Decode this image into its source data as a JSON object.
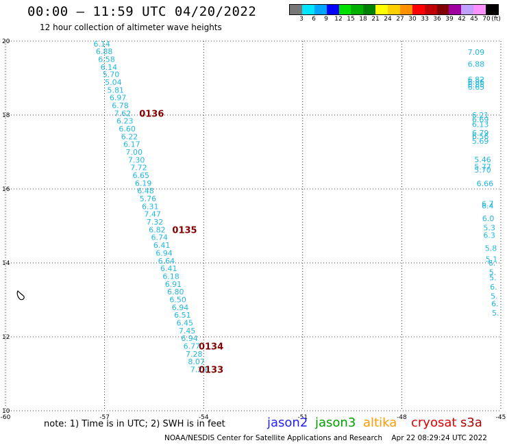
{
  "title": "00:00 – 11:59 UTC 04/20/2022",
  "subtitle": "12 hour collection of altimeter wave heights",
  "legend": {
    "unit": "(ft)",
    "colors": [
      "#777777",
      "#00e5ff",
      "#00a5ff",
      "#0000ff",
      "#00e000",
      "#00b000",
      "#008000",
      "#ffff00",
      "#ffd000",
      "#ff9000",
      "#ff0000",
      "#c00000",
      "#800000",
      "#a000a0",
      "#c0a0ff",
      "#ff90ff",
      "#000000"
    ],
    "labels": [
      "3",
      "6",
      "9",
      "12",
      "15",
      "18",
      "21",
      "24",
      "27",
      "30",
      "33",
      "36",
      "39",
      "42",
      "45",
      "70"
    ]
  },
  "map": {
    "lon_ticks": [
      "-60",
      "-57",
      "-54",
      "-51",
      "-48",
      "-45"
    ],
    "lat_ticks": [
      "10",
      "12",
      "14",
      "16",
      "18",
      "20"
    ],
    "lon_range": [
      -60,
      -45
    ],
    "lat_range": [
      10,
      20
    ],
    "grid": "dotted",
    "track_color": "#20b8e0",
    "time_color": "#800000"
  },
  "track_main": [
    {
      "lat": 19.93,
      "v": "6.14"
    },
    {
      "lat": 19.72,
      "v": "6.88"
    },
    {
      "lat": 19.51,
      "v": "6.58"
    },
    {
      "lat": 19.3,
      "v": "6.14"
    },
    {
      "lat": 19.1,
      "v": "5.70"
    },
    {
      "lat": 18.89,
      "v": "5.04"
    },
    {
      "lat": 18.68,
      "v": "5.81"
    },
    {
      "lat": 18.47,
      "v": "6.97"
    },
    {
      "lat": 18.26,
      "v": "6.78"
    },
    {
      "lat": 18.05,
      "v": "7.62"
    },
    {
      "lat": 17.84,
      "v": "6.23"
    },
    {
      "lat": 17.63,
      "v": "6.60"
    },
    {
      "lat": 17.42,
      "v": "6.22"
    },
    {
      "lat": 17.21,
      "v": "6.17"
    },
    {
      "lat": 17.0,
      "v": "7.00"
    },
    {
      "lat": 16.79,
      "v": "7.30"
    },
    {
      "lat": 16.58,
      "v": "7.72"
    },
    {
      "lat": 16.37,
      "v": "6.65"
    },
    {
      "lat": 16.16,
      "v": "6.19"
    },
    {
      "lat": 15.95,
      "v": "6.48"
    },
    {
      "lat": 15.74,
      "v": "5.76"
    },
    {
      "lat": 15.53,
      "v": "6.31"
    },
    {
      "lat": 15.32,
      "v": "7.47"
    },
    {
      "lat": 15.11,
      "v": "7.32"
    },
    {
      "lat": 14.9,
      "v": "6.82"
    },
    {
      "lat": 14.69,
      "v": "6.74"
    },
    {
      "lat": 14.48,
      "v": "6.41"
    },
    {
      "lat": 14.27,
      "v": "6.94"
    },
    {
      "lat": 14.06,
      "v": "6.64"
    },
    {
      "lat": 13.85,
      "v": "6.41"
    },
    {
      "lat": 13.64,
      "v": "6.18"
    },
    {
      "lat": 13.43,
      "v": "6.91"
    },
    {
      "lat": 13.22,
      "v": "6.80"
    },
    {
      "lat": 13.01,
      "v": "6.50"
    },
    {
      "lat": 12.8,
      "v": "6.94"
    },
    {
      "lat": 12.59,
      "v": "6.51"
    },
    {
      "lat": 12.38,
      "v": "6.45"
    },
    {
      "lat": 12.17,
      "v": "7.45"
    },
    {
      "lat": 11.96,
      "v": "6.94"
    },
    {
      "lat": 11.75,
      "v": "6.77"
    },
    {
      "lat": 11.54,
      "v": "7.28"
    },
    {
      "lat": 11.33,
      "v": "8.07"
    },
    {
      "lat": 11.12,
      "v": "7.29"
    }
  ],
  "track_main_lon": {
    "start": -57.08,
    "end": -54.15
  },
  "time_labels": [
    {
      "lat": 18.05,
      "lon": -55.95,
      "text": "0136"
    },
    {
      "lat": 14.9,
      "lon": -54.95,
      "text": "0135"
    },
    {
      "lat": 11.75,
      "lon": -54.15,
      "text": "0134"
    },
    {
      "lat": 11.12,
      "lon": -54.15,
      "text": "0133"
    }
  ],
  "track_edge": [
    {
      "lat": 19.7,
      "lon": -45.75,
      "v": "7.09"
    },
    {
      "lat": 19.38,
      "lon": -45.75,
      "v": "6.88"
    },
    {
      "lat": 18.96,
      "lon": -45.75,
      "v": "6.82"
    },
    {
      "lat": 18.9,
      "lon": -45.75,
      "v": "6.86"
    },
    {
      "lat": 18.82,
      "lon": -45.75,
      "v": "6.85"
    },
    {
      "lat": 18.76,
      "lon": -45.75,
      "v": "6.65"
    },
    {
      "lat": 18.0,
      "lon": -45.62,
      "v": "6.21"
    },
    {
      "lat": 17.88,
      "lon": -45.62,
      "v": "6.69"
    },
    {
      "lat": 17.75,
      "lon": -45.62,
      "v": "6.13"
    },
    {
      "lat": 17.52,
      "lon": -45.62,
      "v": "6.79"
    },
    {
      "lat": 17.43,
      "lon": -45.62,
      "v": "6.56"
    },
    {
      "lat": 17.3,
      "lon": -45.62,
      "v": "5.69"
    },
    {
      "lat": 16.8,
      "lon": -45.55,
      "v": "5.46"
    },
    {
      "lat": 16.6,
      "lon": -45.55,
      "v": "5.77"
    },
    {
      "lat": 16.52,
      "lon": -45.55,
      "v": "5.70"
    },
    {
      "lat": 16.15,
      "lon": -45.48,
      "v": "6.66"
    },
    {
      "lat": 15.6,
      "lon": -45.4,
      "v": "6.7"
    },
    {
      "lat": 15.55,
      "lon": -45.4,
      "v": "6.4"
    },
    {
      "lat": 15.2,
      "lon": -45.38,
      "v": "6.0"
    },
    {
      "lat": 14.95,
      "lon": -45.35,
      "v": "5.3"
    },
    {
      "lat": 14.75,
      "lon": -45.35,
      "v": "6.3"
    },
    {
      "lat": 14.4,
      "lon": -45.3,
      "v": "5.8"
    },
    {
      "lat": 14.1,
      "lon": -45.28,
      "v": "5.1"
    },
    {
      "lat": 14.0,
      "lon": -45.27,
      "v": "6."
    },
    {
      "lat": 13.75,
      "lon": -45.25,
      "v": "5."
    },
    {
      "lat": 13.6,
      "lon": -45.24,
      "v": "5."
    },
    {
      "lat": 13.35,
      "lon": -45.22,
      "v": "6."
    },
    {
      "lat": 13.1,
      "lon": -45.2,
      "v": "5."
    },
    {
      "lat": 12.9,
      "lon": -45.18,
      "v": "6."
    },
    {
      "lat": 12.65,
      "lon": -45.16,
      "v": "5."
    }
  ],
  "note": "note:  1) Time is in UTC;  2) SWH is in feet",
  "satellites": [
    {
      "name": "jason2",
      "color": "#1f1fff"
    },
    {
      "name": "jason3",
      "color": "#00a000"
    },
    {
      "name": "altika",
      "color": "#ff9900"
    },
    {
      "name": "cryosat",
      "color": "#e00000"
    },
    {
      "name": "s3a",
      "color": "#b00000"
    }
  ],
  "credit": "NOAA/NESDIS Center for Satellite Applications and Research",
  "generated": "Apr 22 08:29:24 UTC 2022"
}
